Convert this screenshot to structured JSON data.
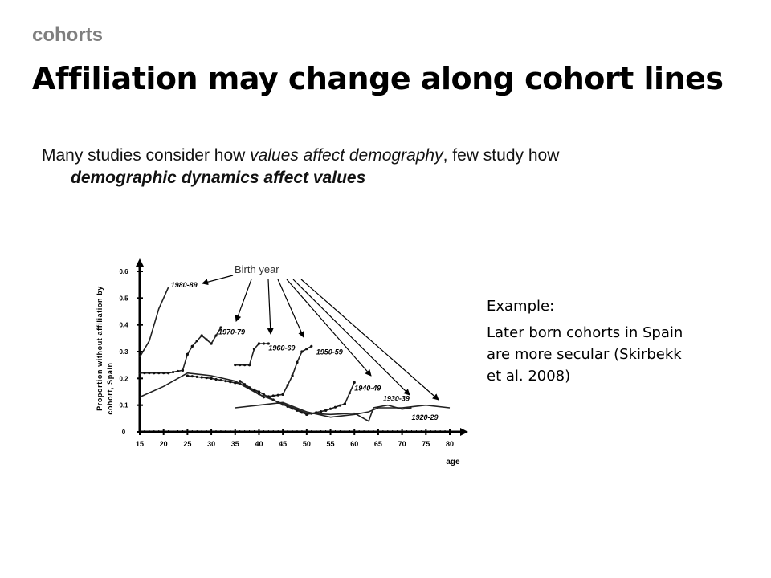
{
  "header": {
    "section": "cohorts",
    "title": "Affiliation may change along cohort lines"
  },
  "body": {
    "part1": "Many studies consider how ",
    "part2_italic": "values affect demography",
    "part3": ", few study how",
    "part4_bold_italic": "demographic dynamics affect values"
  },
  "example": {
    "label": "Example:",
    "text": "Later born cohorts in Spain are more secular (Skirbekk et al. 2008)"
  },
  "chart_data": {
    "type": "line",
    "title": "",
    "xlabel": "age",
    "ylabel": "Proportion without affiliation by cohort, Spain",
    "xlim": [
      15,
      80
    ],
    "ylim": [
      0,
      0.6
    ],
    "x_ticks": [
      "15",
      "20",
      "25",
      "30",
      "35",
      "40",
      "45",
      "50",
      "55",
      "60",
      "65",
      "70",
      "75",
      "80"
    ],
    "y_ticks": [
      "0",
      "0.1",
      "0.2",
      "0.3",
      "0.4",
      "0.5",
      "0.6"
    ],
    "annotation": "Birth year",
    "series": [
      {
        "name": "1980-89",
        "x": [
          15,
          17,
          19,
          21
        ],
        "y": [
          0.28,
          0.34,
          0.46,
          0.54
        ]
      },
      {
        "name": "1970-79",
        "x": [
          15,
          18,
          21,
          24,
          25,
          26,
          28,
          30,
          32
        ],
        "y": [
          0.22,
          0.22,
          0.22,
          0.23,
          0.29,
          0.32,
          0.36,
          0.33,
          0.39
        ]
      },
      {
        "name": "1960-69",
        "x": [
          35,
          38,
          39,
          40,
          42
        ],
        "y": [
          0.25,
          0.25,
          0.31,
          0.33,
          0.33
        ]
      },
      {
        "name": "1950-59",
        "x": [
          36,
          41,
          45,
          47,
          48,
          49,
          51
        ],
        "y": [
          0.19,
          0.13,
          0.14,
          0.21,
          0.26,
          0.3,
          0.32
        ]
      },
      {
        "name": "1940-49",
        "x": [
          25,
          30,
          36,
          40,
          44,
          50,
          54,
          58,
          60
        ],
        "y": [
          0.21,
          0.2,
          0.18,
          0.15,
          0.11,
          0.065,
          0.08,
          0.105,
          0.185
        ]
      },
      {
        "name": "1930-39",
        "x": [
          15,
          20,
          25,
          30,
          35,
          40,
          45,
          50,
          55,
          60,
          63,
          64,
          67,
          70,
          72
        ],
        "y": [
          0.13,
          0.17,
          0.22,
          0.21,
          0.19,
          0.14,
          0.105,
          0.07,
          0.065,
          0.07,
          0.04,
          0.09,
          0.1,
          0.085,
          0.09
        ]
      },
      {
        "name": "1920-29",
        "x": [
          35,
          40,
          45,
          50,
          55,
          60,
          63,
          65,
          70,
          75,
          80
        ],
        "y": [
          0.09,
          0.1,
          0.11,
          0.075,
          0.055,
          0.065,
          0.075,
          0.09,
          0.09,
          0.1,
          0.09
        ]
      }
    ]
  }
}
